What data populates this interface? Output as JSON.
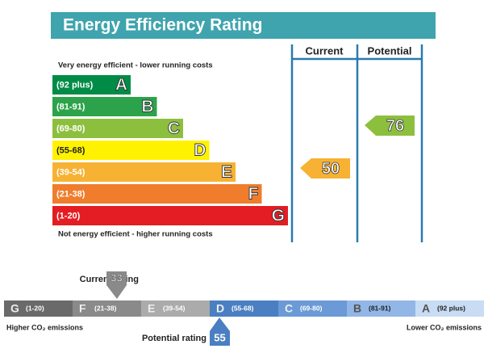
{
  "title": "Energy Efficiency Rating",
  "columns": [
    "Current",
    "Potential"
  ],
  "top_note": "Very energy efficient - lower running costs",
  "bottom_note": "Not energy efficient - higher running costs",
  "bands": [
    {
      "range": "(92 plus)",
      "letter": "A",
      "color": "#008c46"
    },
    {
      "range": "(81-91)",
      "letter": "B",
      "color": "#2ca34a"
    },
    {
      "range": "(69-80)",
      "letter": "C",
      "color": "#8dbf3f"
    },
    {
      "range": "(55-68)",
      "letter": "D",
      "color": "#fff200"
    },
    {
      "range": "(39-54)",
      "letter": "E",
      "color": "#f7b233"
    },
    {
      "range": "(21-38)",
      "letter": "F",
      "color": "#ef7d2c"
    },
    {
      "range": "(1-20)",
      "letter": "G",
      "color": "#e31d23"
    }
  ],
  "current": 50,
  "potential": 76,
  "scale": {
    "bands": [
      {
        "letter": "G",
        "range": "(1-20)",
        "color": "#6a6a6a"
      },
      {
        "letter": "F",
        "range": "(21-38)",
        "color": "#8a8a8a"
      },
      {
        "letter": "E",
        "range": "(39-54)",
        "color": "#ababab"
      },
      {
        "letter": "D",
        "range": "(55-68)",
        "color": "#4a7fc1"
      },
      {
        "letter": "C",
        "range": "(69-80)",
        "color": "#6b9ad6"
      },
      {
        "letter": "B",
        "range": "(81-91)",
        "color": "#92b6e6"
      },
      {
        "letter": "A",
        "range": "(92 plus)",
        "color": "#c8dcf3"
      }
    ],
    "current_label": "Current rating",
    "current_value": 33,
    "potential_label": "Potential rating",
    "potential_value": 55,
    "left_note": "Higher CO₂ emissions",
    "right_note": "Lower CO₂ emissions"
  }
}
